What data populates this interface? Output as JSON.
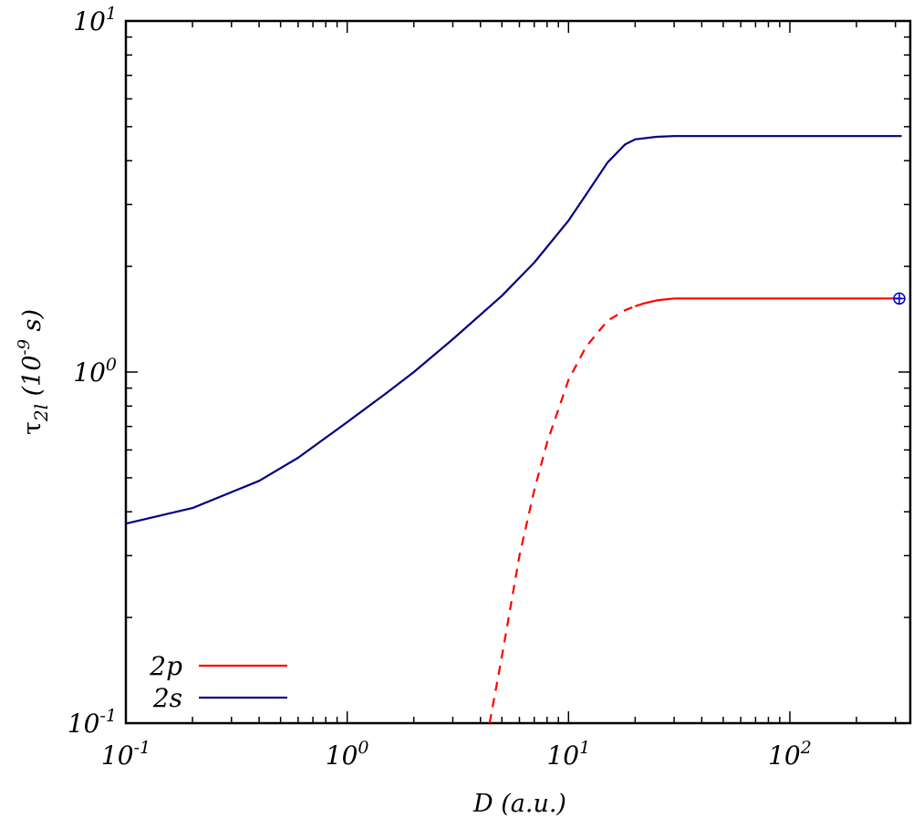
{
  "chart_data": {
    "type": "line",
    "x_scale": "log",
    "y_scale": "log",
    "xlim": [
      0.1,
      350
    ],
    "ylim": [
      0.1,
      10
    ],
    "xlabel": "D (a.u.)",
    "ylabel": {
      "symbol": "τ",
      "subscript": "2l",
      "rest": " (10",
      "exp": "-9",
      "unit": " s)"
    },
    "x_ticks": [
      {
        "value": 0.1,
        "base": "10",
        "exp": "-1"
      },
      {
        "value": 1,
        "base": "10",
        "exp": "0"
      },
      {
        "value": 10,
        "base": "10",
        "exp": "1"
      },
      {
        "value": 100,
        "base": "10",
        "exp": "2"
      }
    ],
    "y_ticks": [
      {
        "value": 0.1,
        "base": "10",
        "exp": "-1"
      },
      {
        "value": 1,
        "base": "10",
        "exp": "0"
      },
      {
        "value": 10,
        "base": "10",
        "exp": "1"
      }
    ],
    "grid": false,
    "legend_position": "bottom-left",
    "series": [
      {
        "name": "2p",
        "color": "#ff0000",
        "segments": [
          {
            "style": "dashed",
            "x": [
              4.4,
              5.0,
              6.0,
              7.0,
              8.0,
              10.0,
              12.0,
              15.0,
              18.0,
              20.0
            ],
            "y": [
              0.1,
              0.155,
              0.3,
              0.46,
              0.63,
              0.95,
              1.18,
              1.4,
              1.5,
              1.54
            ]
          },
          {
            "style": "solid",
            "x": [
              20.0,
              22.0,
              25.0,
              30.0,
              40.0,
              100.0,
              320.0
            ],
            "y": [
              1.54,
              1.57,
              1.6,
              1.62,
              1.62,
              1.62,
              1.62
            ]
          }
        ]
      },
      {
        "name": "2s",
        "color": "#000080",
        "segments": [
          {
            "style": "solid",
            "x": [
              0.1,
              0.2,
              0.4,
              0.6,
              0.8,
              1.0,
              1.5,
              2.0,
              3.0,
              5.0,
              7.0,
              10.0,
              12.0,
              15.0,
              18.0,
              20.0,
              25.0,
              30.0,
              40.0,
              100.0,
              320.0
            ],
            "y": [
              0.37,
              0.41,
              0.49,
              0.57,
              0.65,
              0.72,
              0.87,
              1.0,
              1.24,
              1.65,
              2.05,
              2.7,
              3.2,
              3.95,
              4.45,
              4.6,
              4.68,
              4.7,
              4.7,
              4.7,
              4.7
            ]
          }
        ]
      }
    ],
    "annotations": [
      {
        "symbol": "⊕",
        "x": 350,
        "y": 1.62,
        "color": "#0000cc"
      }
    ]
  }
}
